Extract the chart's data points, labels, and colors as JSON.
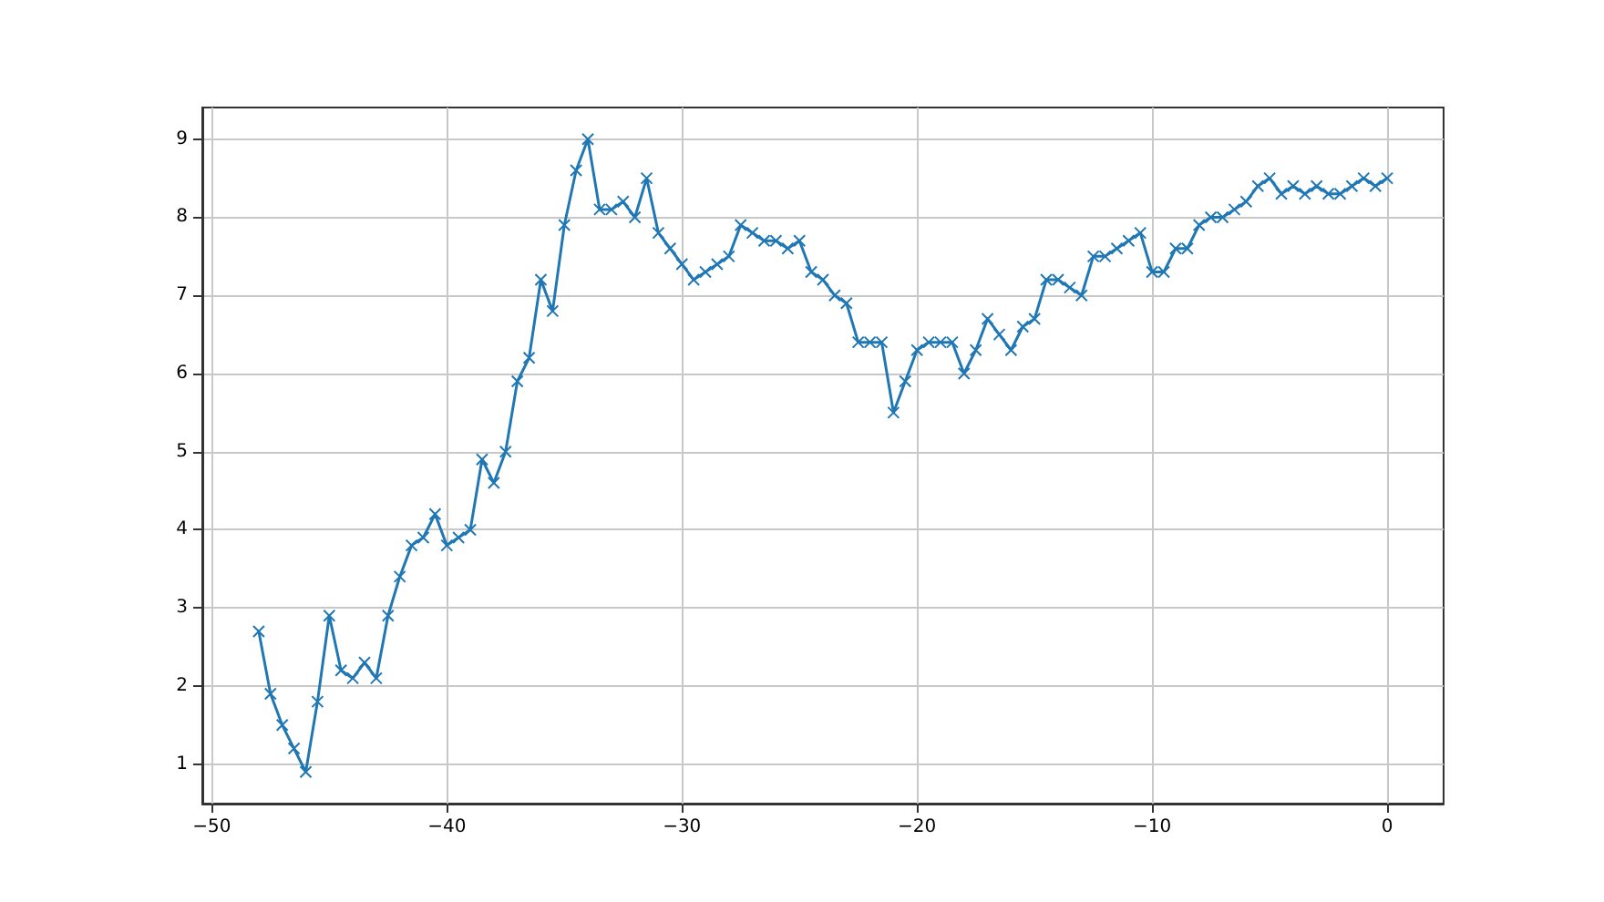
{
  "chart_data": {
    "type": "line",
    "x": [
      -48,
      -47.5,
      -47,
      -46.5,
      -46,
      -45.5,
      -45,
      -44.5,
      -44,
      -43.5,
      -43,
      -42.5,
      -42,
      -41.5,
      -41,
      -40.5,
      -40,
      -39.5,
      -39,
      -38.5,
      -38,
      -37.5,
      -37,
      -36.5,
      -36,
      -35.5,
      -35,
      -34.5,
      -34,
      -33.5,
      -33,
      -32.5,
      -32,
      -31.5,
      -31,
      -30.5,
      -30,
      -29.5,
      -29,
      -28.5,
      -28,
      -27.5,
      -27,
      -26.5,
      -26,
      -25.5,
      -25,
      -24.5,
      -24,
      -23.5,
      -23,
      -22.5,
      -22,
      -21.5,
      -21,
      -20.5,
      -20,
      -19.5,
      -19,
      -18.5,
      -18,
      -17.5,
      -17,
      -16.5,
      -16,
      -15.5,
      -15,
      -14.5,
      -14,
      -13.5,
      -13,
      -12.5,
      -12,
      -11.5,
      -11,
      -10.5,
      -10,
      -9.5,
      -9,
      -8.5,
      -8,
      -7.5,
      -7,
      -6.5,
      -6,
      -5.5,
      -5,
      -4.5,
      -4,
      -3.5,
      -3,
      -2.5,
      -2,
      -1.5,
      -1,
      -0.5,
      0
    ],
    "series": [
      {
        "color": "#1f77b4",
        "values": [
          2.7,
          1.9,
          1.5,
          1.2,
          0.9,
          1.8,
          2.9,
          2.2,
          2.1,
          2.3,
          2.1,
          2.9,
          3.4,
          3.8,
          3.9,
          4.2,
          3.8,
          3.9,
          4.0,
          4.9,
          4.6,
          5.0,
          5.9,
          6.2,
          7.2,
          6.8,
          7.9,
          8.6,
          9.0,
          8.1,
          8.1,
          8.2,
          8.0,
          8.5,
          7.8,
          7.6,
          7.4,
          7.2,
          7.3,
          7.4,
          7.5,
          7.9,
          7.8,
          7.7,
          7.7,
          7.6,
          7.7,
          7.3,
          7.2,
          7.0,
          6.9,
          6.4,
          6.4,
          6.4,
          5.5,
          5.9,
          6.3,
          6.4,
          6.4,
          6.4,
          6.0,
          6.3,
          6.7,
          6.5,
          6.3,
          6.6,
          6.7,
          7.2,
          7.2,
          7.1,
          7.0,
          7.5,
          7.5,
          7.6,
          7.7,
          7.8,
          7.3,
          7.3,
          7.6,
          7.6,
          7.9,
          8.0,
          8.0,
          8.1,
          8.2,
          8.4,
          8.5,
          8.3,
          8.4,
          8.3,
          8.4,
          8.3,
          8.3,
          8.4,
          8.5,
          8.4,
          8.5
        ]
      }
    ],
    "xlim": [
      -50.4,
      2.4
    ],
    "ylim": [
      0.495,
      9.405
    ],
    "xticks": [
      -50,
      -40,
      -30,
      -20,
      -10,
      0
    ],
    "yticks": [
      1,
      2,
      3,
      4,
      5,
      6,
      7,
      8,
      9
    ],
    "grid": true,
    "marker": "cross",
    "line_style": "solid"
  }
}
